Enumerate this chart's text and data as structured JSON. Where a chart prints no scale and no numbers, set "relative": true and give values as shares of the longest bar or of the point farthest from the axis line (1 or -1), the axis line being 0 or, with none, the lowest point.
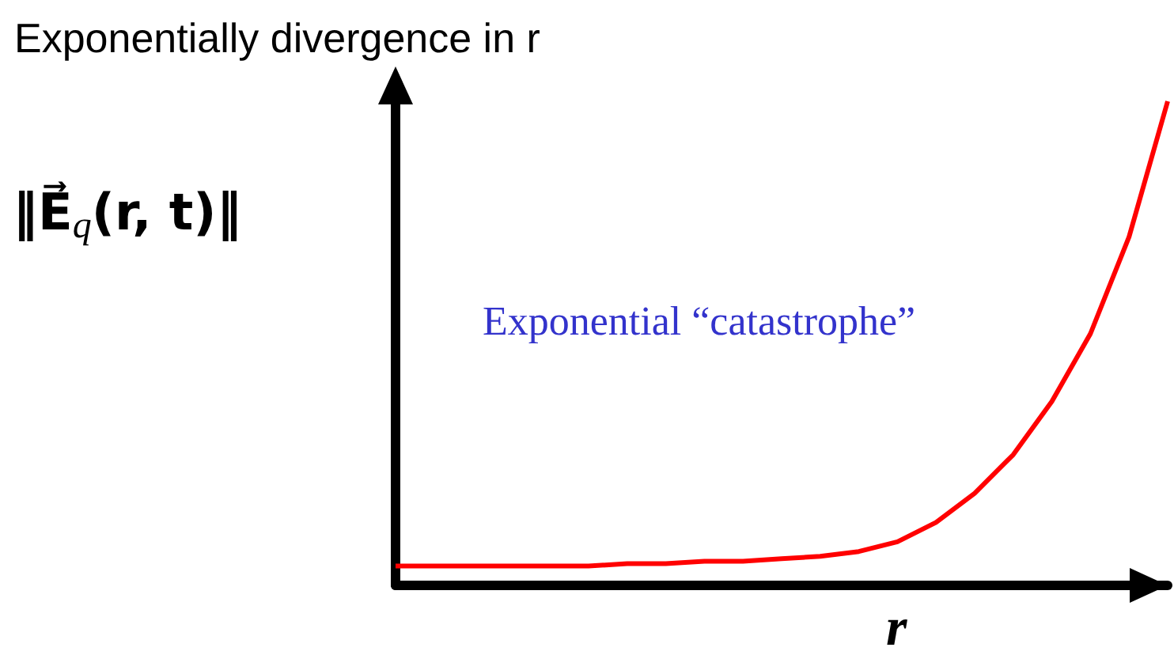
{
  "chart_data": {
    "type": "line",
    "relative": true,
    "title": "Exponentially divergence in r",
    "xlabel": "r",
    "ylabel": "‖E⃗$_{q}$(r, t)‖",
    "annotations": [
      "Exponential “catastrophe”"
    ],
    "categories": [
      null,
      null,
      null,
      null,
      null,
      null,
      null,
      null,
      null,
      null,
      null,
      null,
      null,
      null,
      null,
      null,
      null,
      null,
      null,
      null,
      null
    ],
    "series": [
      {
        "color": "#ff0000",
        "values": [
          0.04,
          0.04,
          0.04,
          0.04,
          0.04,
          0.04,
          0.045,
          0.045,
          0.05,
          0.05,
          0.055,
          0.06,
          0.07,
          0.09,
          0.13,
          0.19,
          0.27,
          0.38,
          0.52,
          0.72,
          1
        ]
      }
    ]
  }
}
